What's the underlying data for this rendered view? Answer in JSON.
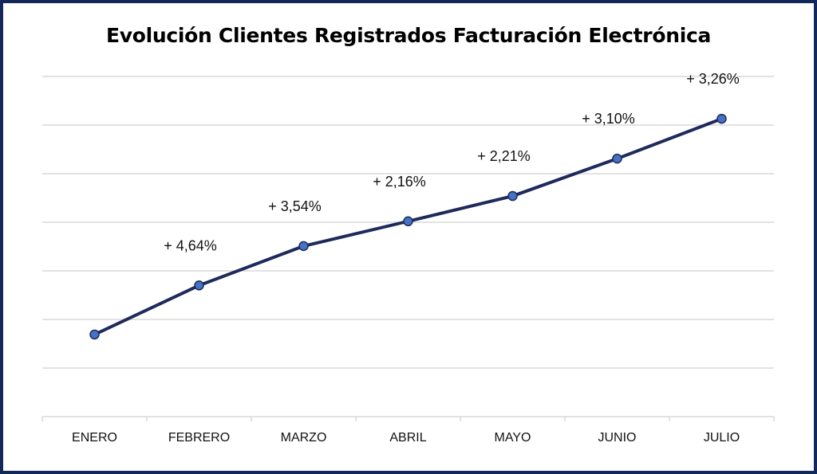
{
  "chart_data": {
    "type": "line",
    "title": "Evolución Clientes Registrados Facturación Electrónica",
    "xlabel": "",
    "ylabel": "",
    "categories": [
      "ENERO",
      "FEBRERO",
      "MARZO",
      "ABRIL",
      "MAYO",
      "JUNIO",
      "JULIO"
    ],
    "values": [
      1.69,
      2.7,
      3.51,
      4.02,
      4.54,
      5.31,
      6.13
    ],
    "data_labels": [
      "",
      "+ 4,64%",
      "+ 3,54%",
      "+ 2,16%",
      "+ 2,21%",
      "+ 3,10%",
      "+ 3,26%"
    ],
    "ylim": [
      0,
      7
    ],
    "grid": true,
    "y_tick_labels_visible": false,
    "legend": "none",
    "line_color": "#1f2a5c",
    "marker_color": "#4472c4",
    "border_color": "#13285a"
  }
}
